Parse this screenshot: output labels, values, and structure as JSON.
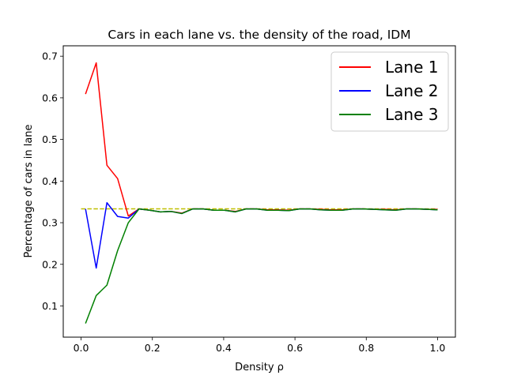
{
  "chart_data": {
    "type": "line",
    "title": "Cars in each lane vs. the density of the road, IDM",
    "xlabel": "Density ρ",
    "ylabel": "Percentage of cars in lane",
    "xlim": [
      -0.05,
      1.05
    ],
    "ylim": [
      0.025,
      0.725
    ],
    "xticks": [
      0.0,
      0.2,
      0.4,
      0.6,
      0.8,
      1.0
    ],
    "xtick_labels": [
      "0.0",
      "0.2",
      "0.4",
      "0.6",
      "0.8",
      "1.0"
    ],
    "yticks": [
      0.1,
      0.2,
      0.3,
      0.4,
      0.5,
      0.6,
      0.7
    ],
    "ytick_labels": [
      "0.1",
      "0.2",
      "0.3",
      "0.4",
      "0.5",
      "0.6",
      "0.7"
    ],
    "grid": false,
    "legend_position": "top-right",
    "x": [
      0.0125,
      0.0425,
      0.0725,
      0.1025,
      0.1325,
      0.1625,
      0.1925,
      0.2225,
      0.2525,
      0.2825,
      0.3125,
      0.3425,
      0.3725,
      0.4025,
      0.4325,
      0.4625,
      0.4925,
      0.5225,
      0.5525,
      0.5825,
      0.6125,
      0.6425,
      0.6725,
      0.7025,
      0.7325,
      0.7625,
      0.7925,
      0.8225,
      0.8525,
      0.8825,
      0.9125,
      0.9425,
      0.9725,
      1.0
    ],
    "series": [
      {
        "name": "Lane 1",
        "color": "#ff0000",
        "values": [
          0.609,
          0.684,
          0.438,
          0.406,
          0.316,
          0.333,
          0.33,
          0.326,
          0.327,
          0.323,
          0.333,
          0.333,
          0.33,
          0.33,
          0.327,
          0.333,
          0.333,
          0.331,
          0.331,
          0.33,
          0.333,
          0.333,
          0.332,
          0.331,
          0.331,
          0.333,
          0.333,
          0.332,
          0.332,
          0.331,
          0.333,
          0.333,
          0.332,
          0.332
        ]
      },
      {
        "name": "Lane 2",
        "color": "#0000ff",
        "values": [
          0.333,
          0.191,
          0.348,
          0.315,
          0.311,
          0.333,
          0.33,
          0.326,
          0.327,
          0.322,
          0.333,
          0.333,
          0.33,
          0.33,
          0.326,
          0.333,
          0.333,
          0.33,
          0.33,
          0.329,
          0.333,
          0.333,
          0.331,
          0.33,
          0.33,
          0.333,
          0.333,
          0.332,
          0.331,
          0.33,
          0.333,
          0.333,
          0.332,
          0.331
        ]
      },
      {
        "name": "Lane 3",
        "color": "#008000",
        "values": [
          0.058,
          0.125,
          0.15,
          0.233,
          0.3,
          0.333,
          0.33,
          0.326,
          0.327,
          0.322,
          0.333,
          0.333,
          0.33,
          0.33,
          0.326,
          0.333,
          0.333,
          0.33,
          0.33,
          0.329,
          0.333,
          0.333,
          0.331,
          0.33,
          0.33,
          0.333,
          0.333,
          0.332,
          0.331,
          0.33,
          0.333,
          0.333,
          0.332,
          0.331
        ]
      }
    ],
    "reference_line": {
      "y": 0.3333,
      "x_range": [
        0.0,
        1.0
      ],
      "style": "dashed",
      "color": "#bfbf00"
    }
  }
}
